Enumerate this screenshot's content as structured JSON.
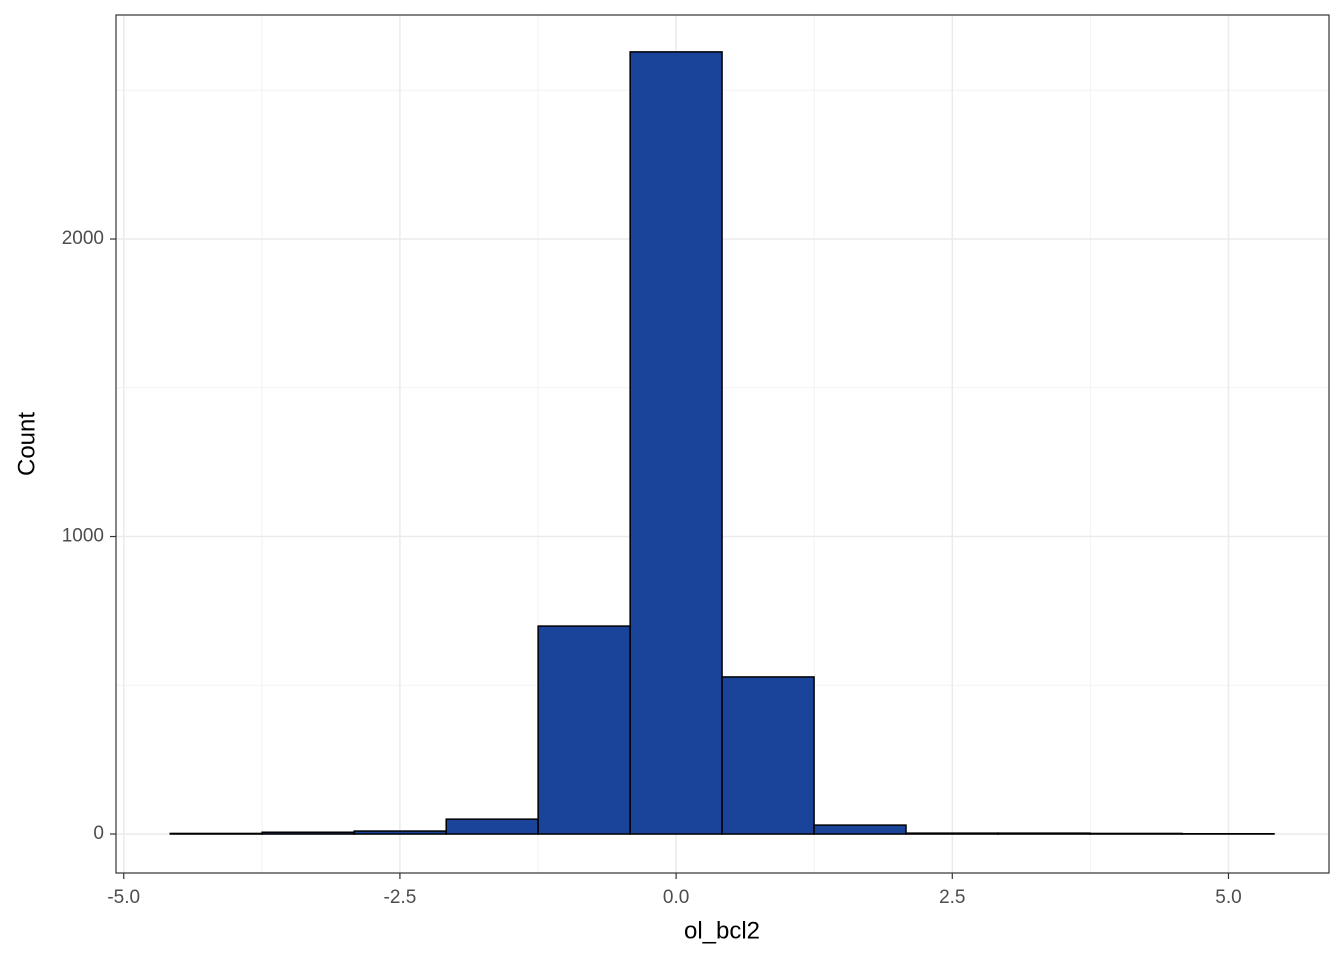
{
  "chart_data": {
    "type": "histogram",
    "x_label": "ol_bcl2",
    "y_label": "Count",
    "bins": [
      -4.579,
      -3.747,
      -2.914,
      -2.081,
      -1.249,
      -0.416,
      0.416,
      1.249,
      2.081,
      2.914,
      3.747,
      4.579,
      5.412
    ],
    "values": [
      2,
      6,
      10,
      50,
      699,
      2629,
      528,
      30,
      3,
      3,
      2,
      1
    ],
    "color": "#1a4499",
    "edge_color": "#000000",
    "xlim": [
      -5.07,
      5.91
    ],
    "ylim": [
      -131,
      2753
    ],
    "xticks": [
      {
        "value": -5,
        "label": "-5.0"
      },
      {
        "value": -2.5,
        "label": "-2.5"
      },
      {
        "value": 0,
        "label": "0.0"
      },
      {
        "value": 2.5,
        "label": "2.5"
      },
      {
        "value": 5,
        "label": "5.0"
      }
    ],
    "x_minor_ticks": [
      -3.75,
      -1.25,
      1.25,
      3.75
    ],
    "yticks": [
      0,
      1000,
      2000
    ],
    "y_minor_ticks": [
      500,
      1500,
      2500
    ],
    "grid": true
  }
}
